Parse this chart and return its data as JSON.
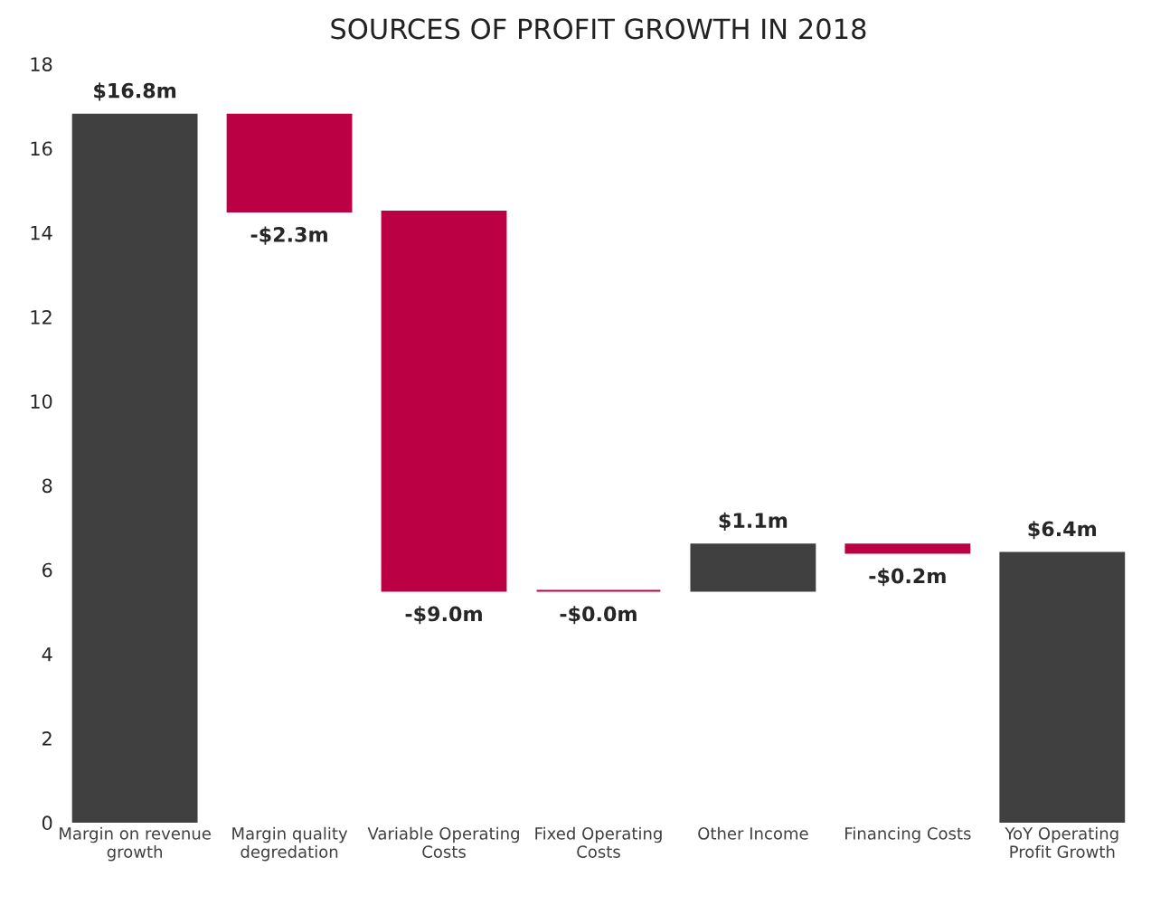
{
  "chart_data": {
    "type": "bar",
    "title": "SOURCES OF PROFIT GROWTH IN 2018",
    "categories": [
      "Margin on revenue\ngrowth",
      "Margin quality\ndegredation",
      "Variable Operating\nCosts",
      "Fixed Operating\nCosts",
      "Other Income",
      "Financing Costs",
      "YoY Operating\nProfit Growth"
    ],
    "values": [
      16.8,
      -2.3,
      -9.0,
      -0.0,
      1.1,
      -0.2,
      6.4
    ],
    "base": [
      0,
      16.8,
      14.5,
      5.5,
      5.5,
      6.6,
      0
    ],
    "colors": [
      "#404040",
      "#bc0044",
      "#bc0044",
      "#bc0044",
      "#404040",
      "#bc0044",
      "#404040"
    ],
    "value_labels": [
      "$16.8m",
      "-$2.3m",
      "-$9.0m",
      "-$0.0m",
      "$1.1m",
      "-$0.2m",
      "$6.4m"
    ],
    "ylim": [
      0,
      18
    ],
    "yticks": [
      0,
      2,
      4,
      6,
      8,
      10,
      12,
      14,
      16,
      18
    ],
    "grid": false
  }
}
